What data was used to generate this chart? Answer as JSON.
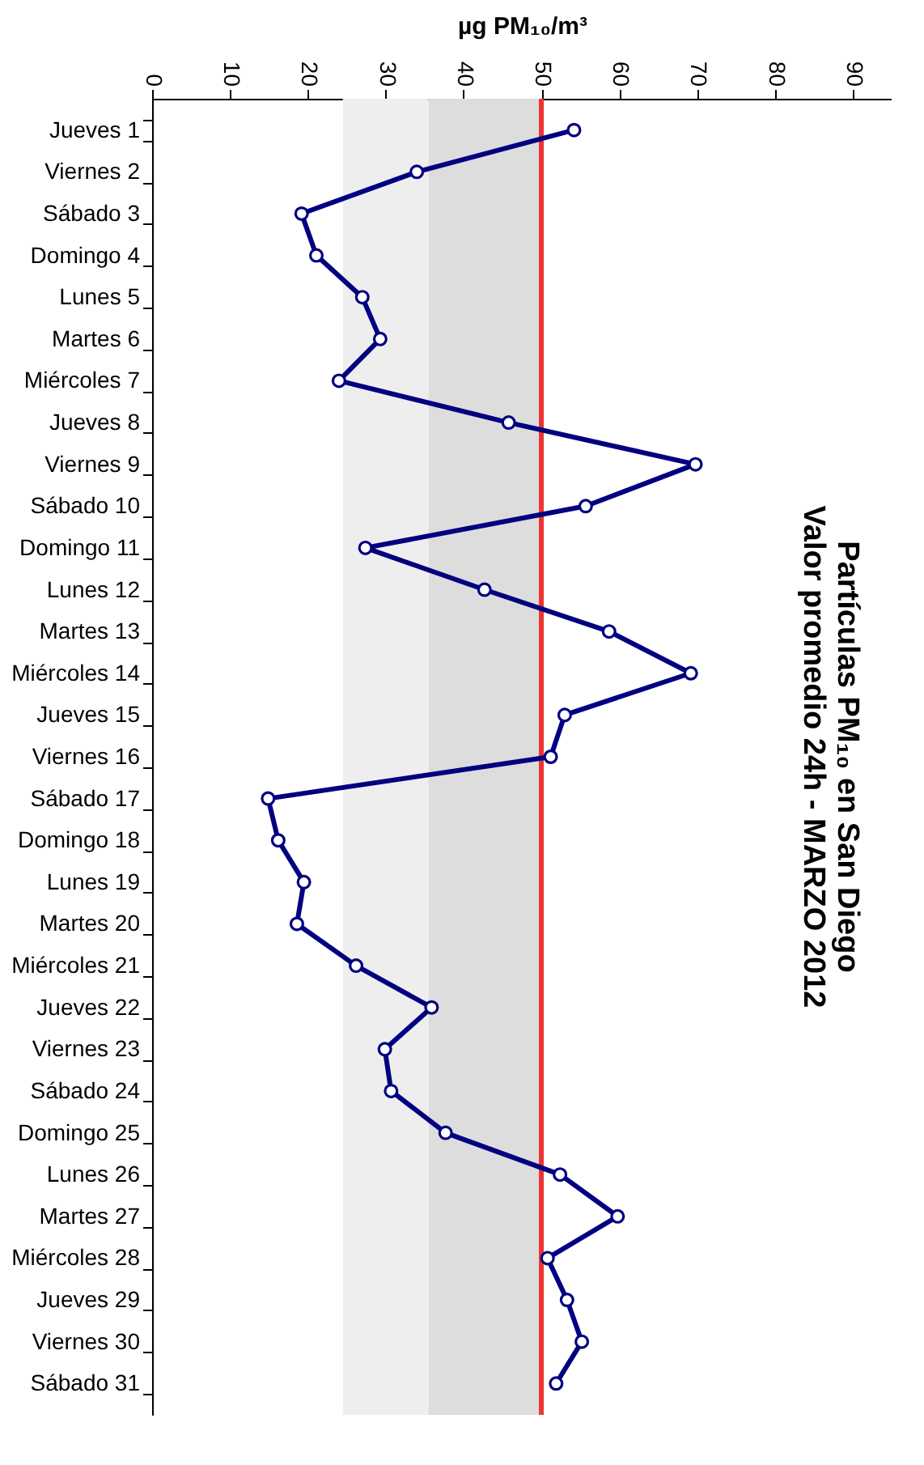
{
  "chart_data": {
    "type": "line",
    "orientation": "horizontal",
    "title": "Partículas PM₁₀ en San Diego",
    "subtitle": "Valor promedio 24h - MARZO 2012",
    "xlabel": "µg PM₁₀/m³",
    "categories": [
      "Jueves 1",
      "Viernes 2",
      "Sábado 3",
      "Domingo 4",
      "Lunes 5",
      "Martes 6",
      "Miércoles 7",
      "Jueves 8",
      "Viernes 9",
      "Sábado 10",
      "Domingo 11",
      "Lunes 12",
      "Martes 13",
      "Miércoles 14",
      "Jueves 15",
      "Viernes 16",
      "Sábado 17",
      "Domingo 18",
      "Lunes 19",
      "Martes 20",
      "Miércoles 21",
      "Jueves 22",
      "Viernes 23",
      "Sábado 24",
      "Domingo 25",
      "Lunes 26",
      "Martes 27",
      "Miércoles 28",
      "Jueves 29",
      "Viernes 30",
      "Sábado 31"
    ],
    "series": [
      {
        "color": "#000080",
        "values": [
          54.2,
          34.0,
          19.2,
          21.1,
          27.0,
          29.3,
          24.0,
          45.8,
          69.8,
          55.7,
          27.4,
          42.7,
          58.7,
          69.2,
          53.0,
          51.2,
          14.9,
          16.2,
          19.5,
          18.6,
          26.2,
          35.9,
          29.9,
          30.7,
          37.7,
          52.4,
          59.8,
          50.8,
          53.3,
          55.2,
          51.9
        ]
      }
    ],
    "xlim": [
      0,
      95
    ],
    "xticks": [
      0,
      10,
      20,
      30,
      40,
      50,
      60,
      70,
      80,
      90
    ],
    "ref_lines": [
      {
        "axis": "x",
        "value": 50,
        "color": "#ee3333"
      }
    ],
    "bands": [
      {
        "axis": "x",
        "from": 24.5,
        "to": 35.5,
        "color": "#eeeeee"
      },
      {
        "axis": "x",
        "from": 35.5,
        "to": 50,
        "color": "#dddddd"
      }
    ],
    "marker": "circle",
    "grid": false
  }
}
